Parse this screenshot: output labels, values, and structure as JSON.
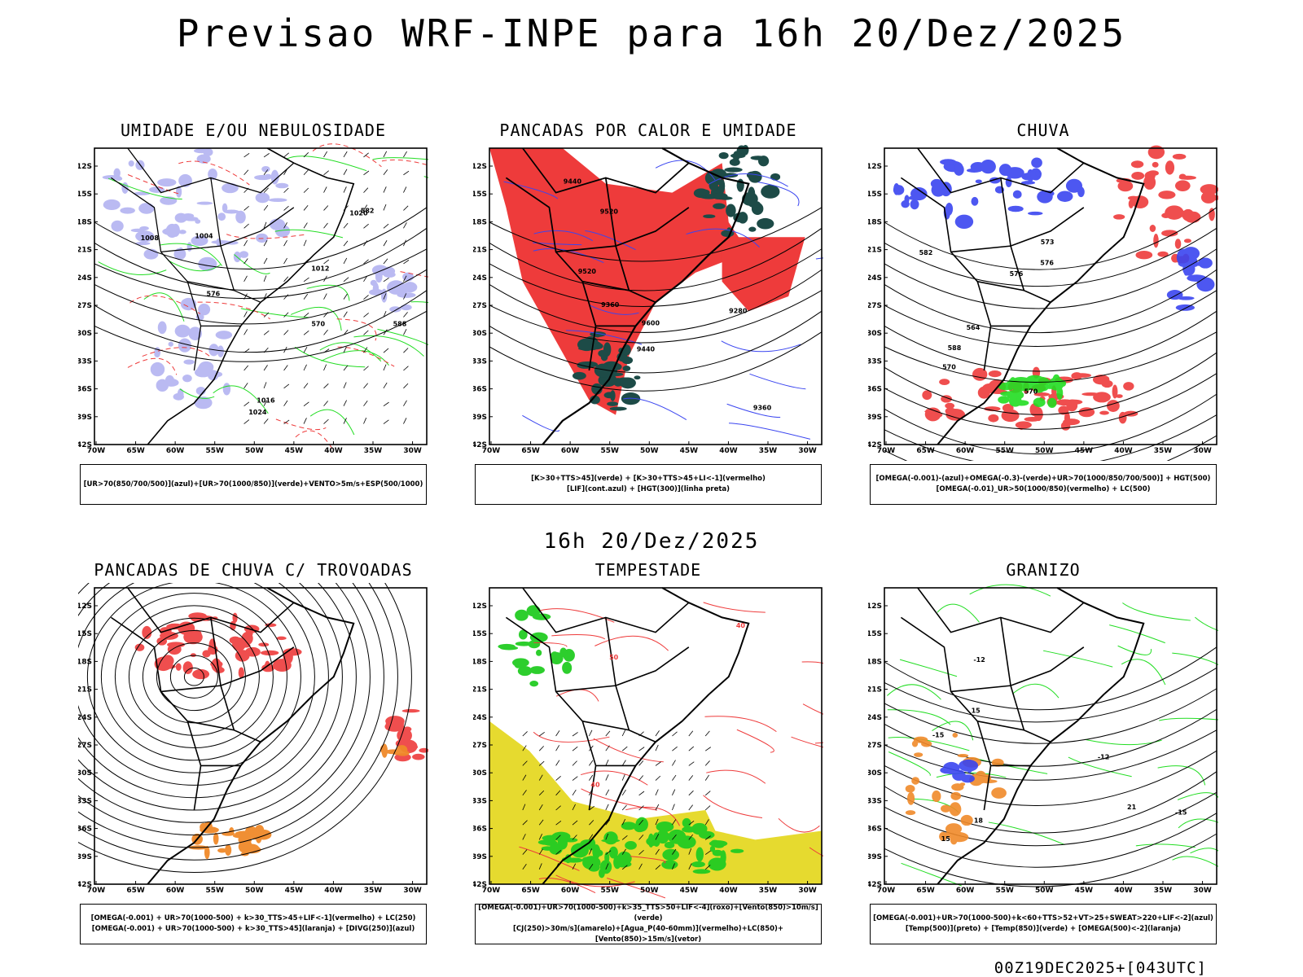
{
  "header": {
    "title": "Previsao WRF-INPE  para 16h 20/Dez/2025"
  },
  "middle": {
    "title": "16h 20/Dez/2025"
  },
  "footer": {
    "run": "00Z19DEC2025+[043UTC]"
  },
  "axes": {
    "lat": [
      "12S",
      "15S",
      "18S",
      "21S",
      "24S",
      "27S",
      "30S",
      "33S",
      "36S",
      "39S",
      "42S"
    ],
    "lon": [
      "70W",
      "65W",
      "60W",
      "55W",
      "50W",
      "45W",
      "40W",
      "35W",
      "30W"
    ]
  },
  "colors": {
    "red": "#ee3b3b",
    "green": "#22dd22",
    "blue": "#3a45f0",
    "lavender": "#aaaaf0",
    "teal": "#1d4b47",
    "yellow": "#e6da2f",
    "orange": "#f08a2a",
    "black": "#000000"
  },
  "panels": [
    {
      "id": "umidade",
      "title": "UMIDADE E/OU NEBULOSIDADE",
      "legend": [
        "[UR>70(850/700/500)](azul)+[UR>70(1000/850)](verde)+VENTO>5m/s+ESP(500/1000)"
      ],
      "labels": [
        "1008",
        "1004",
        "1012",
        "1016",
        "1020",
        "1024",
        "570",
        "576",
        "582",
        "588"
      ]
    },
    {
      "id": "pancadas-calor",
      "title": "PANCADAS POR CALOR E UMIDADE",
      "legend": [
        "[K>30+TTS>45](verde) + [K>30+TTS>45+LI<-1](vermelho)",
        "[LIF](cont.azul) + [HGT(300)](linha preta)"
      ],
      "labels": [
        "9600",
        "9520",
        "9440",
        "9280",
        "9360",
        "9520",
        "9440",
        "9360"
      ]
    },
    {
      "id": "chuva",
      "title": "CHUVA",
      "legend": [
        "[OMEGA(-0.001)-(azul)+OMEGA(-0.3)-(verde)+UR>70(1000/850/700/500)] + HGT(500)",
        "[OMEGA(-0.01)_UR>50(1000/850)(vermelho) + LC(500)"
      ],
      "labels": [
        "582",
        "576",
        "570",
        "564",
        "588",
        "576",
        "573",
        "570"
      ]
    },
    {
      "id": "pancadas-trovoadas",
      "title": "PANCADAS DE CHUVA C/ TROVOADAS",
      "legend": [
        "[OMEGA(-0.001) + UR>70(1000-500) + k>30_TTS>45+LIF<-1](vermelho) + LC(250)",
        "[OMEGA(-0.001) + UR>70(1000-500) + k>30_TTS>45](laranja) + [DIVG(250)](azul)"
      ],
      "labels": []
    },
    {
      "id": "tempestade",
      "title": "TEMPESTADE",
      "legend": [
        "[OMEGA(-0.001)+UR>70(1000-500)+k>35_TTS>50+LIF<-4](roxo)+[Vento(850)>10m/s](verde)",
        "[CJ(250)>30m/s](amarelo)+[Agua_P(40-60mm)](vermelho)+LC(850)+[Vento(850)>15m/s](vetor)"
      ],
      "labels": [
        "40",
        "40",
        "50"
      ]
    },
    {
      "id": "granizo",
      "title": "GRANIZO",
      "legend": [
        "[OMEGA(-0.001)+UR>70(1000-500)+k<60+TTS>52+VT>25+SWEAT>220+LIF<-2](azul)",
        "[Temp(500)](preto) + [Temp(850)](verde) + [OMEGA(500)<-2](laranja)"
      ],
      "labels": [
        "15",
        "18",
        "21",
        "-15",
        "-12",
        "-15",
        "-12",
        "15"
      ]
    }
  ]
}
